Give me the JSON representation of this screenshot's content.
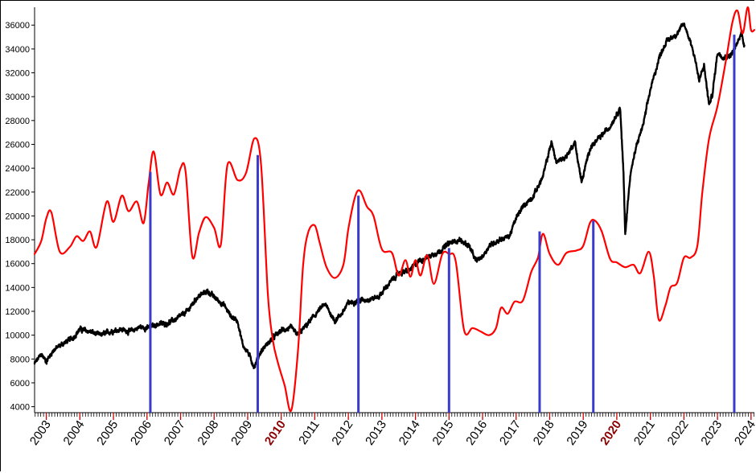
{
  "chart_data": {
    "type": "line",
    "title": "",
    "xlabel": "",
    "ylabel": "",
    "xlim": [
      2002.65,
      2024.1
    ],
    "ylim": [
      3500,
      37500
    ],
    "y_ticks": [
      4000,
      6000,
      8000,
      10000,
      12000,
      14000,
      16000,
      18000,
      20000,
      22000,
      24000,
      26000,
      28000,
      30000,
      32000,
      34000,
      36000
    ],
    "y_tick_labels": [
      "4000",
      "6000",
      "8000",
      "10000",
      "12000",
      "14000",
      "16000",
      "18000",
      "20000",
      "22000",
      "24000",
      "26000",
      "28000",
      "30000",
      "32000",
      "34000",
      "36000"
    ],
    "x_ticks": [
      2003,
      2004,
      2005,
      2006,
      2007,
      2008,
      2009,
      2010,
      2011,
      2012,
      2013,
      2014,
      2015,
      2016,
      2017,
      2018,
      2019,
      2020,
      2021,
      2022,
      2023,
      2024
    ],
    "x_tick_labels": [
      "2003",
      "2004",
      "2005",
      "2006",
      "2007",
      "2008",
      "2009",
      "2010",
      "2011",
      "2012",
      "2013",
      "2014",
      "2015",
      "2016",
      "2017",
      "2018",
      "2019",
      "2020",
      "2021",
      "2022",
      "2023",
      "2024"
    ],
    "highlighted_x_labels": [
      "2010",
      "2020"
    ],
    "grid": false,
    "legend": "none",
    "series": [
      {
        "color": "#000000",
        "line_width": 2.4,
        "noise": 190,
        "points": [
          [
            2002.65,
            7600
          ],
          [
            2002.85,
            8400
          ],
          [
            2003.0,
            7800
          ],
          [
            2003.2,
            8700
          ],
          [
            2003.5,
            9300
          ],
          [
            2003.8,
            9800
          ],
          [
            2004.0,
            10500
          ],
          [
            2004.3,
            10300
          ],
          [
            2004.6,
            10000
          ],
          [
            2004.9,
            10300
          ],
          [
            2005.2,
            10500
          ],
          [
            2005.5,
            10300
          ],
          [
            2005.8,
            10700
          ],
          [
            2006.0,
            10600
          ],
          [
            2006.3,
            10900
          ],
          [
            2006.6,
            11000
          ],
          [
            2006.9,
            11400
          ],
          [
            2007.2,
            12000
          ],
          [
            2007.5,
            13200
          ],
          [
            2007.8,
            13700
          ],
          [
            2008.0,
            13200
          ],
          [
            2008.3,
            12500
          ],
          [
            2008.5,
            11600
          ],
          [
            2008.7,
            11200
          ],
          [
            2008.85,
            9200
          ],
          [
            2009.0,
            8600
          ],
          [
            2009.2,
            7300
          ],
          [
            2009.35,
            8400
          ],
          [
            2009.5,
            9000
          ],
          [
            2009.8,
            9900
          ],
          [
            2010.0,
            10400
          ],
          [
            2010.3,
            10600
          ],
          [
            2010.5,
            10000
          ],
          [
            2010.8,
            11000
          ],
          [
            2011.1,
            12000
          ],
          [
            2011.3,
            12600
          ],
          [
            2011.6,
            11200
          ],
          [
            2011.8,
            11800
          ],
          [
            2012.0,
            12700
          ],
          [
            2012.3,
            12900
          ],
          [
            2012.6,
            13000
          ],
          [
            2012.9,
            13200
          ],
          [
            2013.2,
            14300
          ],
          [
            2013.5,
            15200
          ],
          [
            2013.8,
            15400
          ],
          [
            2014.1,
            16200
          ],
          [
            2014.4,
            16600
          ],
          [
            2014.7,
            17000
          ],
          [
            2015.0,
            17700
          ],
          [
            2015.3,
            18000
          ],
          [
            2015.6,
            17500
          ],
          [
            2015.8,
            16200
          ],
          [
            2016.0,
            16600
          ],
          [
            2016.2,
            17500
          ],
          [
            2016.5,
            18000
          ],
          [
            2016.8,
            18300
          ],
          [
            2017.0,
            19800
          ],
          [
            2017.2,
            20800
          ],
          [
            2017.5,
            21600
          ],
          [
            2017.8,
            23300
          ],
          [
            2018.05,
            26200
          ],
          [
            2018.2,
            24500
          ],
          [
            2018.5,
            25000
          ],
          [
            2018.75,
            26200
          ],
          [
            2018.95,
            22800
          ],
          [
            2019.2,
            25700
          ],
          [
            2019.5,
            26600
          ],
          [
            2019.8,
            27500
          ],
          [
            2020.1,
            29100
          ],
          [
            2020.2,
            23500
          ],
          [
            2020.25,
            18400
          ],
          [
            2020.4,
            23500
          ],
          [
            2020.6,
            26000
          ],
          [
            2020.8,
            27800
          ],
          [
            2021.0,
            30600
          ],
          [
            2021.3,
            33600
          ],
          [
            2021.5,
            34700
          ],
          [
            2021.8,
            35300
          ],
          [
            2022.0,
            36100
          ],
          [
            2022.2,
            34600
          ],
          [
            2022.35,
            33000
          ],
          [
            2022.45,
            31300
          ],
          [
            2022.6,
            32600
          ],
          [
            2022.75,
            29300
          ],
          [
            2022.85,
            30200
          ],
          [
            2023.0,
            33700
          ],
          [
            2023.2,
            33300
          ],
          [
            2023.4,
            33500
          ],
          [
            2023.6,
            34500
          ],
          [
            2023.72,
            35400
          ],
          [
            2023.8,
            34300
          ]
        ]
      },
      {
        "color": "#ff0000",
        "line_width": 2.2,
        "noise": 0,
        "points": [
          [
            2002.65,
            16800
          ],
          [
            2002.85,
            17900
          ],
          [
            2003.0,
            19800
          ],
          [
            2003.15,
            20300
          ],
          [
            2003.4,
            17000
          ],
          [
            2003.7,
            17400
          ],
          [
            2003.9,
            18300
          ],
          [
            2004.1,
            17900
          ],
          [
            2004.3,
            18700
          ],
          [
            2004.5,
            17400
          ],
          [
            2004.8,
            21200
          ],
          [
            2005.0,
            19500
          ],
          [
            2005.25,
            21700
          ],
          [
            2005.45,
            20400
          ],
          [
            2005.7,
            21200
          ],
          [
            2005.9,
            19400
          ],
          [
            2006.05,
            22800
          ],
          [
            2006.2,
            25400
          ],
          [
            2006.4,
            21800
          ],
          [
            2006.6,
            22800
          ],
          [
            2006.8,
            21800
          ],
          [
            2007.0,
            24000
          ],
          [
            2007.15,
            23700
          ],
          [
            2007.35,
            16600
          ],
          [
            2007.55,
            18600
          ],
          [
            2007.75,
            19900
          ],
          [
            2008.0,
            19000
          ],
          [
            2008.2,
            17600
          ],
          [
            2008.4,
            24300
          ],
          [
            2008.7,
            23000
          ],
          [
            2008.95,
            23600
          ],
          [
            2009.2,
            26500
          ],
          [
            2009.4,
            24300
          ],
          [
            2009.6,
            13500
          ],
          [
            2009.75,
            9600
          ],
          [
            2009.9,
            7700
          ],
          [
            2010.1,
            5800
          ],
          [
            2010.3,
            3700
          ],
          [
            2010.5,
            8700
          ],
          [
            2010.65,
            15800
          ],
          [
            2010.8,
            18600
          ],
          [
            2011.0,
            19200
          ],
          [
            2011.15,
            17700
          ],
          [
            2011.35,
            15700
          ],
          [
            2011.6,
            14800
          ],
          [
            2011.85,
            15900
          ],
          [
            2012.0,
            18900
          ],
          [
            2012.2,
            21600
          ],
          [
            2012.35,
            22100
          ],
          [
            2012.55,
            20800
          ],
          [
            2012.75,
            20000
          ],
          [
            2013.0,
            17200
          ],
          [
            2013.3,
            16900
          ],
          [
            2013.5,
            15000
          ],
          [
            2013.7,
            16300
          ],
          [
            2013.85,
            14900
          ],
          [
            2014.0,
            16300
          ],
          [
            2014.15,
            15000
          ],
          [
            2014.35,
            16700
          ],
          [
            2014.55,
            14300
          ],
          [
            2014.8,
            16800
          ],
          [
            2015.0,
            16800
          ],
          [
            2015.2,
            16200
          ],
          [
            2015.45,
            10400
          ],
          [
            2015.7,
            10600
          ],
          [
            2015.95,
            10300
          ],
          [
            2016.2,
            10000
          ],
          [
            2016.4,
            10600
          ],
          [
            2016.55,
            12300
          ],
          [
            2016.75,
            11800
          ],
          [
            2016.95,
            12800
          ],
          [
            2017.2,
            12900
          ],
          [
            2017.45,
            15300
          ],
          [
            2017.65,
            16500
          ],
          [
            2017.8,
            18500
          ],
          [
            2018.0,
            16800
          ],
          [
            2018.25,
            15900
          ],
          [
            2018.5,
            16900
          ],
          [
            2018.8,
            17100
          ],
          [
            2019.0,
            17500
          ],
          [
            2019.2,
            19400
          ],
          [
            2019.35,
            19600
          ],
          [
            2019.55,
            18700
          ],
          [
            2019.8,
            16400
          ],
          [
            2020.0,
            16100
          ],
          [
            2020.25,
            15700
          ],
          [
            2020.5,
            15900
          ],
          [
            2020.7,
            15200
          ],
          [
            2020.95,
            17000
          ],
          [
            2021.1,
            15000
          ],
          [
            2021.25,
            11300
          ],
          [
            2021.45,
            12500
          ],
          [
            2021.6,
            14000
          ],
          [
            2021.8,
            14400
          ],
          [
            2022.0,
            16500
          ],
          [
            2022.2,
            16500
          ],
          [
            2022.4,
            17500
          ],
          [
            2022.55,
            22000
          ],
          [
            2022.75,
            26500
          ],
          [
            2023.0,
            29200
          ],
          [
            2023.25,
            33000
          ],
          [
            2023.45,
            36300
          ],
          [
            2023.6,
            37200
          ],
          [
            2023.75,
            35300
          ],
          [
            2023.9,
            37500
          ],
          [
            2024.0,
            35600
          ],
          [
            2024.1,
            35600
          ]
        ]
      }
    ],
    "markers": {
      "color": "#3a3acc",
      "line_width": 3,
      "items": [
        {
          "x": 2006.1,
          "y": 23700
        },
        {
          "x": 2009.3,
          "y": 25100
        },
        {
          "x": 2012.3,
          "y": 21700
        },
        {
          "x": 2015.0,
          "y": 17300
        },
        {
          "x": 2017.7,
          "y": 18700
        },
        {
          "x": 2019.3,
          "y": 19600
        },
        {
          "x": 2023.5,
          "y": 35200
        }
      ]
    }
  }
}
